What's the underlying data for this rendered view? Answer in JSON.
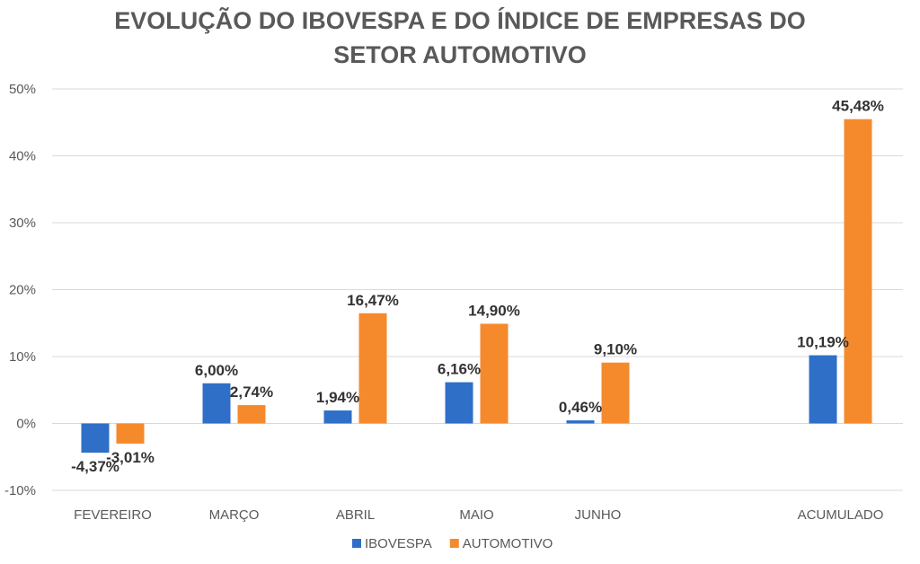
{
  "chart_data": {
    "type": "bar",
    "title_lines": [
      "EVOLUÇÃO DO IBOVESPA E DO ÍNDICE DE EMPRESAS DO",
      "SETOR AUTOMOTIVO"
    ],
    "categories": [
      "FEVEREIRO",
      "MARÇO",
      "ABRIL",
      "MAIO",
      "JUNHO",
      "",
      "ACUMULADO"
    ],
    "series": [
      {
        "name": "IBOVESPA",
        "color": "#2F6FC7",
        "values": [
          -4.37,
          6.0,
          1.94,
          6.16,
          0.46,
          null,
          10.19
        ],
        "labels": [
          "-4,37%",
          "6,00%",
          "1,94%",
          "6,16%",
          "0,46%",
          null,
          "10,19%"
        ]
      },
      {
        "name": "AUTOMOTIVO",
        "color": "#F58A2D",
        "values": [
          -3.01,
          2.74,
          16.47,
          14.9,
          9.1,
          null,
          45.48
        ],
        "labels": [
          "-3,01%",
          "2,74%",
          "16,47%",
          "14,90%",
          "9,10%",
          null,
          "45,48%"
        ]
      }
    ],
    "yticks": [
      -10,
      0,
      10,
      20,
      30,
      40,
      50
    ],
    "ytick_labels": [
      "-10%",
      "0%",
      "10%",
      "20%",
      "30%",
      "40%",
      "50%"
    ],
    "ylim": [
      -10,
      50
    ],
    "xlabel": "",
    "ylabel": "",
    "grid": true,
    "legend_position": "bottom"
  }
}
